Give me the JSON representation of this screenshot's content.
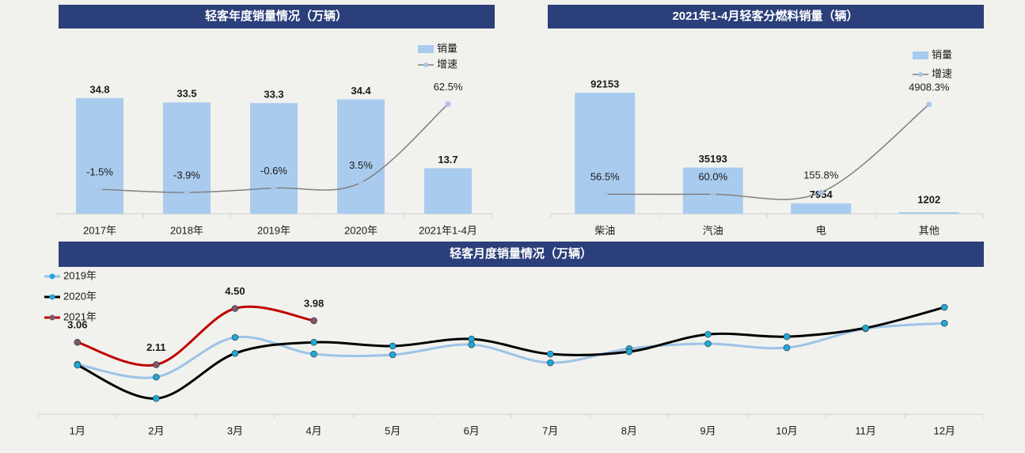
{
  "chart_data": [
    {
      "type": "bar",
      "title": "轻客年度销量情况（万辆）",
      "categories": [
        "2017年",
        "2018年",
        "2019年",
        "2020年",
        "2021年1-4月"
      ],
      "series": [
        {
          "name": "销量",
          "color": "#a9cbee",
          "values": [
            34.8,
            33.5,
            33.3,
            34.4,
            13.7
          ]
        },
        {
          "name": "增速",
          "type": "line",
          "axis": "y2",
          "color": "#808080",
          "marker_color": "#a9c4eb",
          "values": [
            -1.5,
            -3.9,
            -0.6,
            3.5,
            62.5
          ],
          "value_labels": [
            "-1.5%",
            "-3.9%",
            "-0.6%",
            "3.5%",
            "62.5%"
          ]
        }
      ],
      "ylim": [
        0,
        40
      ],
      "y2lim": [
        -20,
        80
      ],
      "legend": "upper right"
    },
    {
      "type": "bar",
      "title": "2021年1-4月轻客分燃料销量（辆）",
      "categories": [
        "柴油",
        "汽油",
        "电",
        "其他"
      ],
      "series": [
        {
          "name": "销量",
          "color": "#a9cbee",
          "values": [
            92153,
            35193,
            7954,
            1202
          ]
        },
        {
          "name": "增速",
          "type": "line",
          "axis": "y2",
          "color": "#808080",
          "marker_color": "#a9c4eb",
          "values": [
            56.5,
            60,
            155.8,
            4908.3
          ],
          "value_labels": [
            "56.5%",
            "60.0%",
            "155.8%",
            "4908.3%"
          ]
        }
      ],
      "ylim": [
        0,
        100000
      ],
      "y2lim": [
        -1000,
        6100
      ],
      "legend": "upper right"
    },
    {
      "type": "line",
      "title": "轻客月度销量情况（万辆）",
      "categories": [
        "1月",
        "2月",
        "3月",
        "4月",
        "5月",
        "6月",
        "7月",
        "8月",
        "9月",
        "10月",
        "11月",
        "12月"
      ],
      "series": [
        {
          "name": "2019年",
          "color": "#9dc3e6",
          "marker_color": "#1fa8d8",
          "values": [
            2.12,
            1.58,
            3.27,
            2.56,
            2.53,
            2.96,
            2.19,
            2.79,
            3.0,
            2.83,
            3.64,
            3.87
          ]
        },
        {
          "name": "2020年",
          "color": "#000000",
          "marker_color": "#1fa8d8",
          "values": [
            2.09,
            0.67,
            2.59,
            3.06,
            2.9,
            3.2,
            2.56,
            2.66,
            3.4,
            3.3,
            3.67,
            4.55
          ]
        },
        {
          "name": "2021年",
          "color": "#c00000",
          "marker_color": "#7a5a6a",
          "values": [
            3.06,
            2.11,
            4.5,
            3.98,
            null,
            null,
            null,
            null,
            null,
            null,
            null,
            null
          ],
          "value_labels": [
            "3.06",
            "2.11",
            "4.50",
            "3.98",
            null,
            null,
            null,
            null,
            null,
            null,
            null,
            null
          ]
        }
      ],
      "ylim": [
        0,
        6
      ],
      "legend": "upper left"
    }
  ]
}
